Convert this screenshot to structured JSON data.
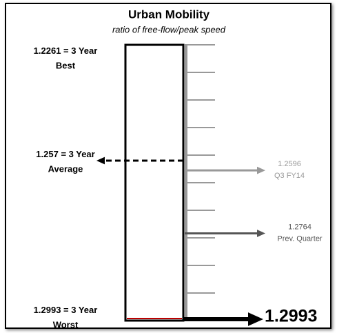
{
  "chart_data": {
    "type": "gauge",
    "title": "Urban Mobility",
    "subtitle": "ratio of free-flow/peak speed",
    "ylim": [
      1.2261,
      1.2993
    ],
    "references": [
      {
        "value": 1.2261,
        "text": [
          "= 3 Year",
          "Best"
        ]
      },
      {
        "value": 1.257,
        "text": [
          "= 3 Year",
          "Average"
        ]
      },
      {
        "value": 1.2993,
        "text": [
          "= 3 Year",
          "Worst"
        ]
      }
    ],
    "series": [
      {
        "name": "Q3 FY14",
        "value": 1.2596,
        "color": "#999999"
      },
      {
        "name": "Prev. Quarter",
        "value": 1.2764,
        "color": "#555555"
      }
    ],
    "current": {
      "value": 1.2993,
      "color": "#000000"
    }
  }
}
